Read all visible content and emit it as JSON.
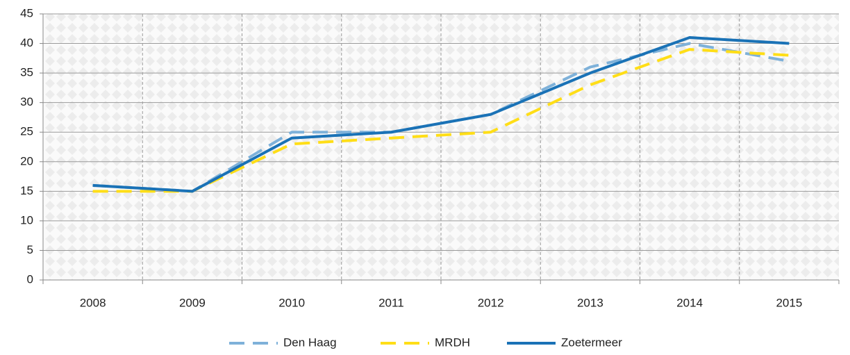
{
  "chart_data": {
    "type": "line",
    "categories": [
      "2008",
      "2009",
      "2010",
      "2011",
      "2012",
      "2013",
      "2014",
      "2015"
    ],
    "series": [
      {
        "name": "Den Haag",
        "color": "#7eb1d9",
        "dash": true,
        "values": [
          16,
          15,
          25,
          25,
          28,
          36,
          40,
          37
        ]
      },
      {
        "name": "MRDH",
        "color": "#ffde17",
        "dash": true,
        "values": [
          15,
          15,
          23,
          24,
          25,
          33,
          39,
          38
        ]
      },
      {
        "name": "Zoetermeer",
        "color": "#1a72b6",
        "dash": false,
        "values": [
          16,
          15,
          24,
          25,
          28,
          35,
          41,
          40
        ]
      }
    ],
    "ylim": [
      0,
      45
    ],
    "yticks": [
      0,
      5,
      10,
      15,
      20,
      25,
      30,
      35,
      40,
      45
    ],
    "grid": true,
    "legend": "bottom"
  }
}
